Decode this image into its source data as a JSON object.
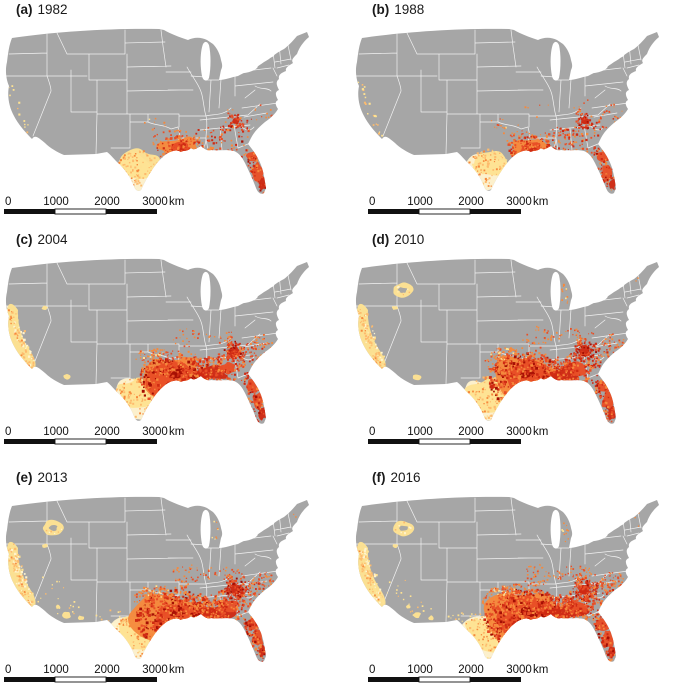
{
  "figure": {
    "panels": [
      {
        "tag": "(a)",
        "year": "1982"
      },
      {
        "tag": "(b)",
        "year": "1988"
      },
      {
        "tag": "(c)",
        "year": "2004"
      },
      {
        "tag": "(d)",
        "year": "2010"
      },
      {
        "tag": "(e)",
        "year": "2013"
      },
      {
        "tag": "(f)",
        "year": "2016"
      }
    ]
  },
  "scalebar": {
    "ticks": [
      "0",
      "1000",
      "2000",
      "3000"
    ],
    "unit": "km"
  },
  "colors": {
    "land": "#a6a6a6",
    "water": "#ffffff",
    "state_border": "#ffffff",
    "label_text": "#1a1a1a",
    "scalebar_black": "#111111",
    "heat_pale_yellow": "#fff3cd",
    "heat_yellow": "#fee292",
    "heat_light_orange": "#fdbb6d",
    "heat_orange": "#f6893c",
    "heat_red": "#e84f27",
    "heat_dark_red": "#cf2a13",
    "heat_deepest_red": "#a50f04"
  }
}
